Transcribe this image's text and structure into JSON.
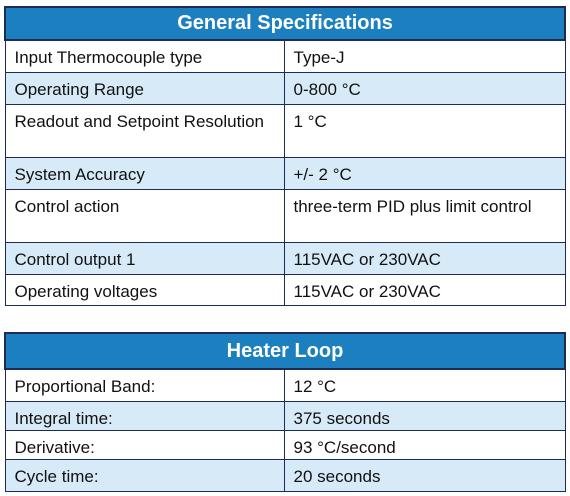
{
  "tables": [
    {
      "title": "General Specifications",
      "rows": [
        [
          "Input Thermocouple type",
          "Type-J"
        ],
        [
          "Operating Range",
          "0-800 °C"
        ],
        [
          "Readout and Setpoint Resolution",
          "1 °C"
        ],
        [
          "System Accuracy",
          "+/- 2 °C"
        ],
        [
          "Control action",
          "three-term PID plus limit control"
        ],
        [
          "Control output 1",
          "115VAC or 230VAC"
        ],
        [
          "Operating voltages",
          "115VAC or 230VAC"
        ]
      ]
    },
    {
      "title": "Heater Loop",
      "rows": [
        [
          "Proportional Band:",
          "12 °C"
        ],
        [
          "Integral time:",
          "375 seconds"
        ],
        [
          "Derivative:",
          "93 °C/second"
        ],
        [
          "Cycle time:",
          "20 seconds"
        ]
      ]
    }
  ]
}
